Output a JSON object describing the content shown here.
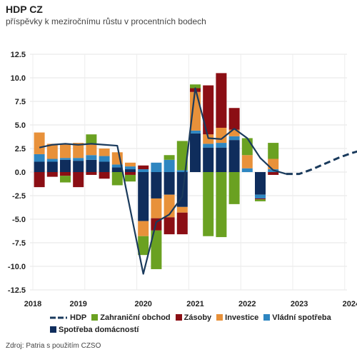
{
  "title": "HDP CZ",
  "subtitle": "příspěvky k meziročnímu růstu v procentních bodech",
  "source": "Zdroj: Patria s použitím CZSO",
  "colors": {
    "spotreba": "#0f2d5c",
    "vladni": "#2e86c1",
    "investice": "#e8913a",
    "zasoby": "#8b0e14",
    "zahranicni": "#6aa121",
    "hdp": "#1a3a5c"
  },
  "legend": {
    "hdp": "HDP",
    "zahranicni": "Zahraniční obchod",
    "zasoby": "Zásoby",
    "investice": "Investice",
    "vladni": "Vládní spotřeba",
    "spotreba": "Spotřeba domácností"
  },
  "chart_data": {
    "type": "bar",
    "stacked": true,
    "title": "HDP CZ",
    "subtitle": "příspěvky k meziročnímu růstu v procentních bodech",
    "ylim": [
      -12.5,
      12.5
    ],
    "yticks": [
      "12.5",
      "10.0",
      "7.5",
      "5.0",
      "2.5",
      "0.0",
      "-2.5",
      "-5.0",
      "-7.5",
      "-10.0",
      "-12.5"
    ],
    "ytick_values": [
      12.5,
      10,
      7.5,
      5,
      2.5,
      0,
      -2.5,
      -5,
      -7.5,
      -10,
      -12.5
    ],
    "x_labels": [
      "2018",
      "2019",
      "2020",
      "2021",
      "2022",
      "2023",
      "2024"
    ],
    "x_label_quarter": [
      0,
      3.5,
      8.5,
      12.5,
      16.5,
      20.5,
      24.5
    ],
    "x_range": [
      0,
      27
    ],
    "categories": [
      "2018Q1",
      "2018Q2",
      "2018Q3",
      "2018Q4",
      "2019Q1",
      "2019Q2",
      "2019Q3",
      "2019Q4",
      "2020Q1",
      "2020Q2",
      "2020Q3",
      "2020Q4",
      "2021Q1",
      "2021Q2",
      "2021Q3",
      "2021Q4",
      "2022Q1",
      "2022Q2",
      "2022Q3"
    ],
    "series": [
      {
        "name": "Spotřeba domácností",
        "key": "spotreba",
        "values": [
          1.1,
          1.1,
          1.3,
          1.2,
          1.3,
          1.1,
          0.5,
          0.3,
          -5.2,
          -2.8,
          -2.4,
          -3.7,
          4.1,
          2.6,
          2.6,
          3.4,
          0.0,
          -2.4,
          0.0
        ]
      },
      {
        "name": "Vládní spotřeba",
        "key": "vladni",
        "values": [
          0.8,
          0.3,
          0.2,
          0.3,
          0.5,
          0.6,
          0.3,
          0.3,
          0.3,
          1.0,
          1.3,
          0.2,
          0.3,
          0.4,
          0.5,
          0.4,
          0.4,
          -0.4,
          0.3
        ]
      },
      {
        "name": "Investice",
        "key": "investice",
        "values": [
          2.3,
          1.6,
          1.5,
          1.6,
          1.2,
          0.8,
          1.3,
          0.4,
          -1.6,
          -2.1,
          -2.4,
          -0.6,
          4.1,
          1.0,
          1.6,
          0.7,
          1.4,
          0.0,
          1.1
        ]
      },
      {
        "name": "Zásoby",
        "key": "zasoby",
        "values": [
          -1.6,
          -0.5,
          -0.4,
          -1.6,
          -0.3,
          -0.7,
          0.0,
          -0.3,
          0.4,
          -1.3,
          -1.8,
          -2.3,
          0.4,
          5.2,
          5.8,
          2.3,
          0.0,
          -0.1,
          -0.3
        ]
      },
      {
        "name": "Zahraniční obchod",
        "key": "zahranicni",
        "values": [
          0.0,
          0.0,
          -0.7,
          0.0,
          1.0,
          0.0,
          -1.4,
          -0.7,
          -2.0,
          -4.1,
          0.5,
          3.1,
          0.4,
          -6.8,
          -6.9,
          -3.4,
          1.8,
          -0.2,
          1.7
        ]
      },
      {
        "name": "HDP",
        "key": "hdp",
        "type": "line",
        "x": [
          0,
          1,
          2,
          3,
          4,
          5,
          6,
          8,
          9,
          10,
          11,
          12,
          13,
          14,
          15,
          16,
          17,
          18,
          19
        ],
        "values": [
          2.6,
          2.9,
          3.0,
          2.9,
          3.0,
          2.9,
          2.8,
          -10.8,
          -5.3,
          -4.5,
          -2.6,
          8.9,
          3.6,
          3.5,
          4.6,
          3.6,
          1.5,
          0.2,
          -0.2
        ]
      },
      {
        "name": "HDP",
        "key": "hdp_forecast",
        "type": "line",
        "dashed": true,
        "x": [
          19,
          20,
          21,
          22,
          23,
          24,
          25,
          26,
          27
        ],
        "values": [
          -0.2,
          -0.2,
          0.3,
          0.9,
          1.5,
          2.0,
          2.4,
          2.8,
          3.3
        ]
      }
    ]
  }
}
